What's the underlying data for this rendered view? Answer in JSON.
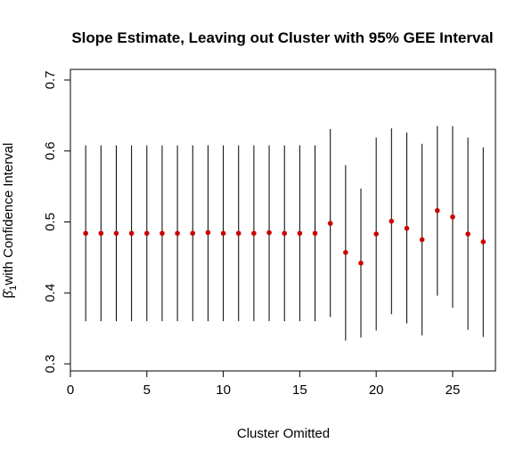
{
  "chart_data": {
    "type": "scatter",
    "title": "Slope Estimate, Leaving out Cluster with 95% GEE Interval",
    "xlabel": "Cluster Omitted",
    "ylabel_symbol": "β̂",
    "ylabel_subscript": "1",
    "ylabel_text": "with Confidence Interval",
    "xlim": [
      0,
      27.8
    ],
    "ylim": [
      0.29,
      0.715
    ],
    "x_ticks": [
      0,
      5,
      10,
      15,
      20,
      25
    ],
    "y_ticks": [
      0.3,
      0.4,
      0.5,
      0.6,
      0.7
    ],
    "grid": false,
    "point_color": "#cc0000",
    "interval_color": "#000000",
    "x": [
      1,
      2,
      3,
      4,
      5,
      6,
      7,
      8,
      9,
      10,
      11,
      12,
      13,
      14,
      15,
      16,
      17,
      18,
      19,
      20,
      21,
      22,
      23,
      24,
      25,
      26,
      27
    ],
    "estimate": [
      0.484,
      0.484,
      0.484,
      0.484,
      0.484,
      0.484,
      0.484,
      0.484,
      0.485,
      0.484,
      0.484,
      0.484,
      0.485,
      0.484,
      0.484,
      0.484,
      0.498,
      0.457,
      0.442,
      0.483,
      0.501,
      0.491,
      0.475,
      0.516,
      0.507,
      0.483,
      0.472
    ],
    "lower": [
      0.36,
      0.36,
      0.36,
      0.36,
      0.36,
      0.36,
      0.36,
      0.36,
      0.36,
      0.36,
      0.36,
      0.36,
      0.36,
      0.36,
      0.36,
      0.36,
      0.366,
      0.333,
      0.337,
      0.347,
      0.37,
      0.357,
      0.34,
      0.396,
      0.379,
      0.348,
      0.338
    ],
    "upper": [
      0.608,
      0.608,
      0.608,
      0.608,
      0.608,
      0.608,
      0.608,
      0.608,
      0.608,
      0.608,
      0.608,
      0.608,
      0.608,
      0.608,
      0.608,
      0.608,
      0.631,
      0.58,
      0.547,
      0.619,
      0.632,
      0.626,
      0.61,
      0.635,
      0.635,
      0.619,
      0.605
    ]
  }
}
